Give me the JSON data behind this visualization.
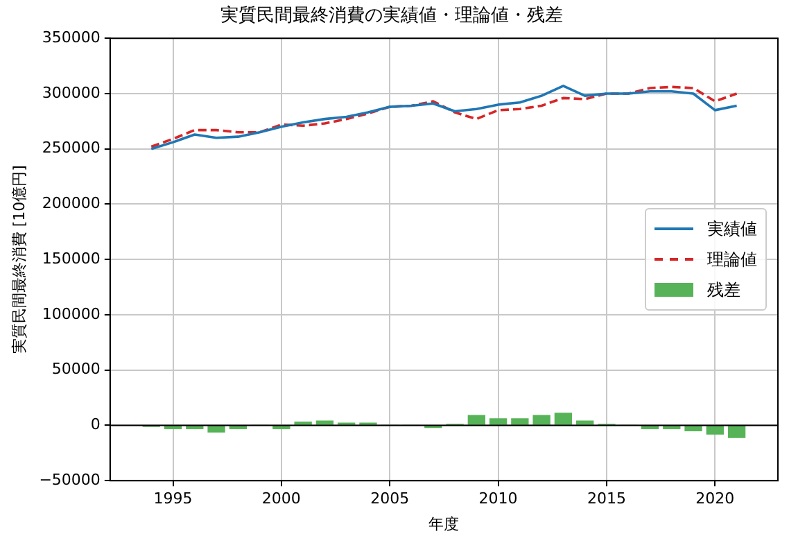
{
  "chart_data": {
    "type": "line",
    "title": "実質民間最終消費の実績値・理論値・残差",
    "xlabel": "年度",
    "ylabel": "実質民間最終消費 [10億円]",
    "x": [
      1994,
      1995,
      1996,
      1997,
      1998,
      1999,
      2000,
      2001,
      2002,
      2003,
      2004,
      2005,
      2006,
      2007,
      2008,
      2009,
      2010,
      2011,
      2012,
      2013,
      2014,
      2015,
      2016,
      2017,
      2018,
      2019,
      2020,
      2021
    ],
    "series": [
      {
        "name": "実績値",
        "color": "#1f77b4",
        "line_style": "solid",
        "values": [
          250000,
          256000,
          263000,
          260000,
          261000,
          265000,
          270000,
          274000,
          277000,
          279000,
          283000,
          288000,
          289000,
          291000,
          284000,
          286000,
          290000,
          292000,
          298000,
          307000,
          298000,
          300000,
          300000,
          302000,
          302000,
          300000,
          285000,
          289000
        ]
      },
      {
        "name": "理論値",
        "color": "#d62728",
        "line_style": "dashed",
        "values": [
          252000,
          259000,
          267000,
          267000,
          265000,
          265000,
          272000,
          271000,
          273000,
          277000,
          282000,
          288000,
          289000,
          293000,
          283000,
          277000,
          285000,
          286000,
          289000,
          296000,
          295000,
          300000,
          300000,
          305000,
          306000,
          305000,
          293000,
          300000
        ]
      },
      {
        "name": "残差",
        "type": "bar",
        "color": "#57b357",
        "values": [
          -1000,
          -3000,
          -3000,
          -6000,
          -3000,
          0,
          -3000,
          3000,
          4000,
          2000,
          2000,
          0,
          0,
          -2000,
          1000,
          9000,
          6000,
          6000,
          9000,
          11000,
          4000,
          1000,
          0,
          -3000,
          -3000,
          -5000,
          -8000,
          -11000
        ]
      }
    ],
    "xlim": [
      1992.1,
      2022.9
    ],
    "xticks": [
      1995,
      2000,
      2005,
      2010,
      2015,
      2020
    ],
    "ylim": [
      -50000,
      350000
    ],
    "yticks": [
      -50000,
      0,
      50000,
      100000,
      150000,
      200000,
      250000,
      300000,
      350000
    ],
    "ref_lines": [
      {
        "axis": "y",
        "value": 0,
        "color": "#000000"
      }
    ],
    "grid": true,
    "legend": "center right"
  }
}
